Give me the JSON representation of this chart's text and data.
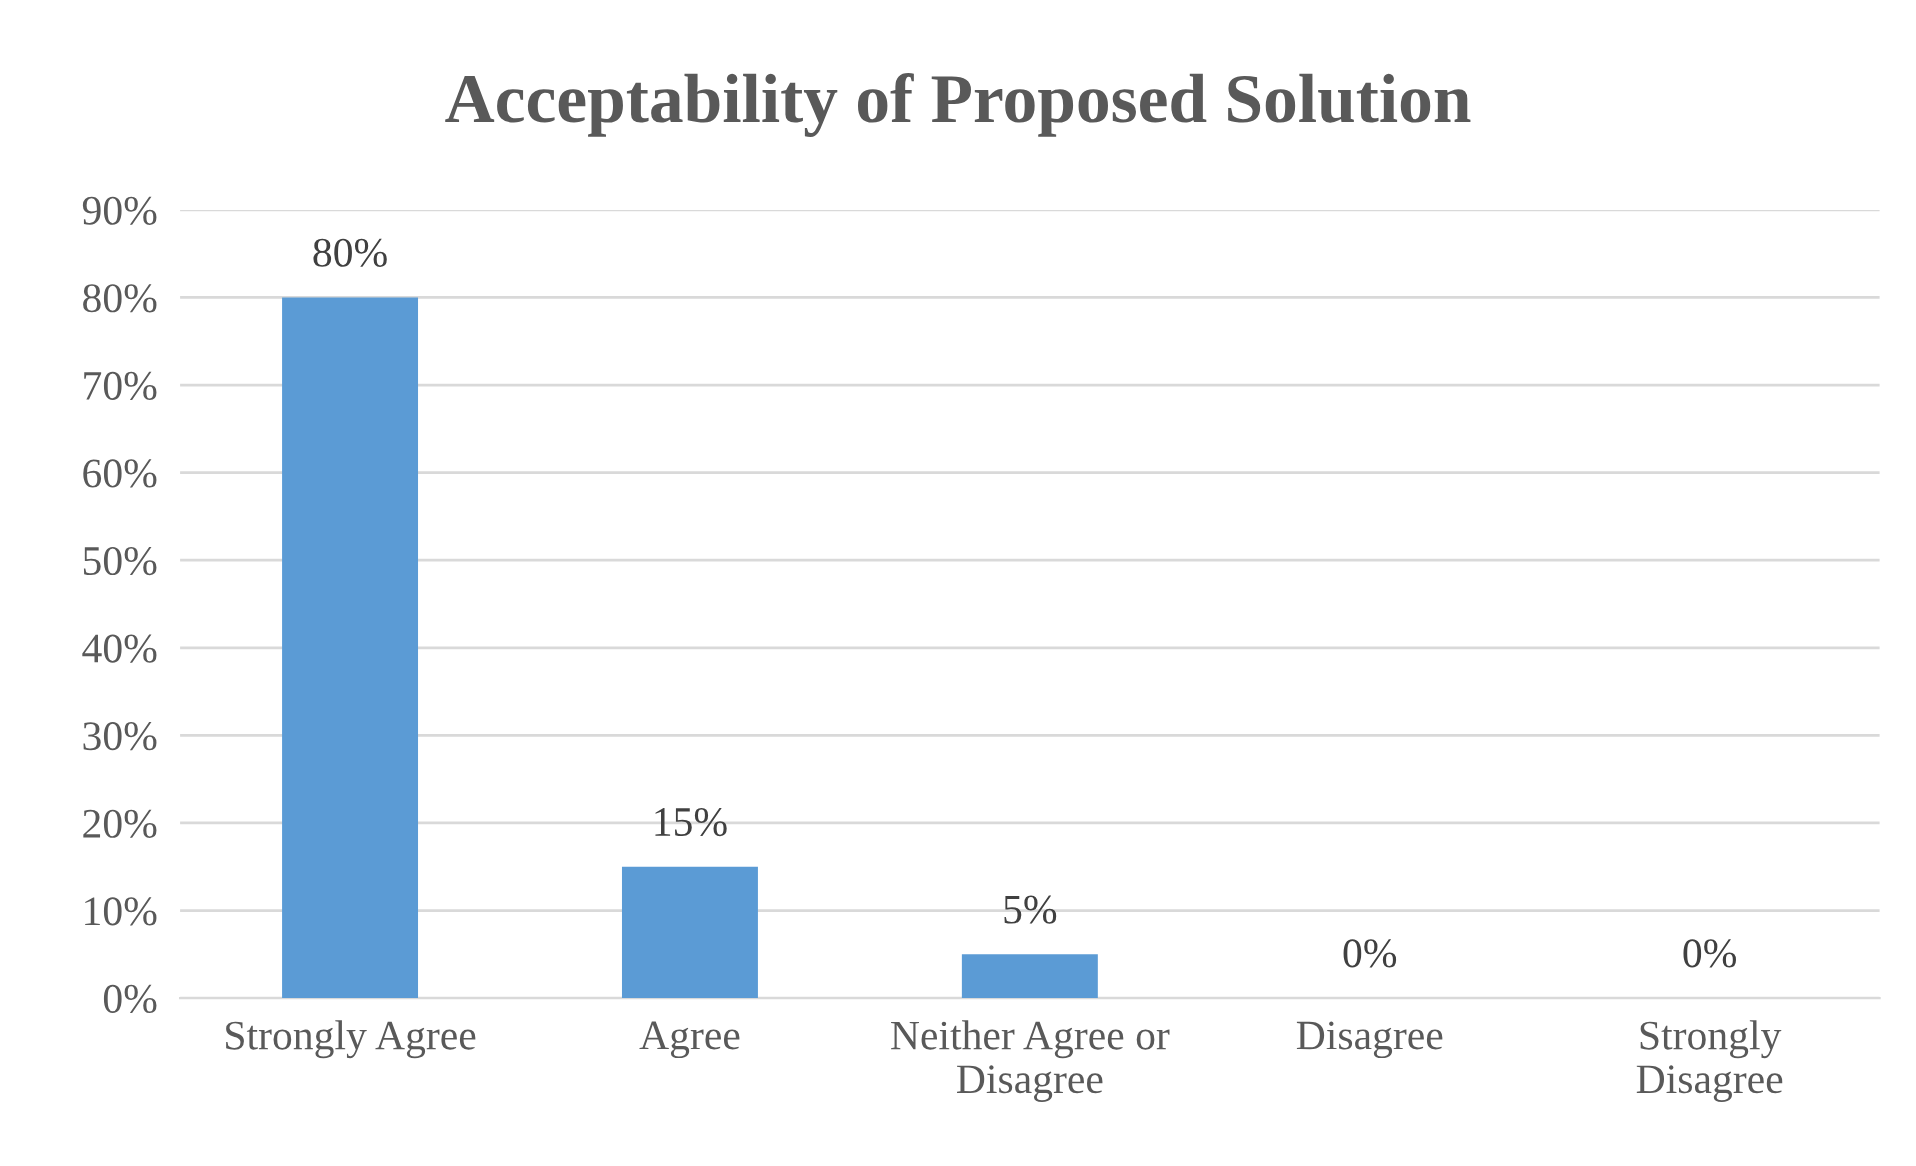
{
  "chart_data": {
    "type": "bar",
    "title": "Acceptability of Proposed Solution",
    "categories": [
      "Strongly Agree",
      "Agree",
      "Neither Agree or\nDisagree",
      "Disagree",
      "Strongly\nDisagree"
    ],
    "values": [
      80,
      15,
      5,
      0,
      0
    ],
    "value_labels": [
      "80%",
      "15%",
      "5%",
      "0%",
      "0%"
    ],
    "color": "#5b9bd5",
    "ylim": [
      0,
      90
    ],
    "yticks": [
      {
        "value": 0,
        "label": "0%"
      },
      {
        "value": 10,
        "label": "10%"
      },
      {
        "value": 20,
        "label": "20%"
      },
      {
        "value": 30,
        "label": "30%"
      },
      {
        "value": 40,
        "label": "40%"
      },
      {
        "value": 50,
        "label": "50%"
      },
      {
        "value": 60,
        "label": "60%"
      },
      {
        "value": 70,
        "label": "70%"
      },
      {
        "value": 80,
        "label": "80%"
      },
      {
        "value": 90,
        "label": "90%"
      }
    ],
    "grid": "y",
    "legend": false
  }
}
